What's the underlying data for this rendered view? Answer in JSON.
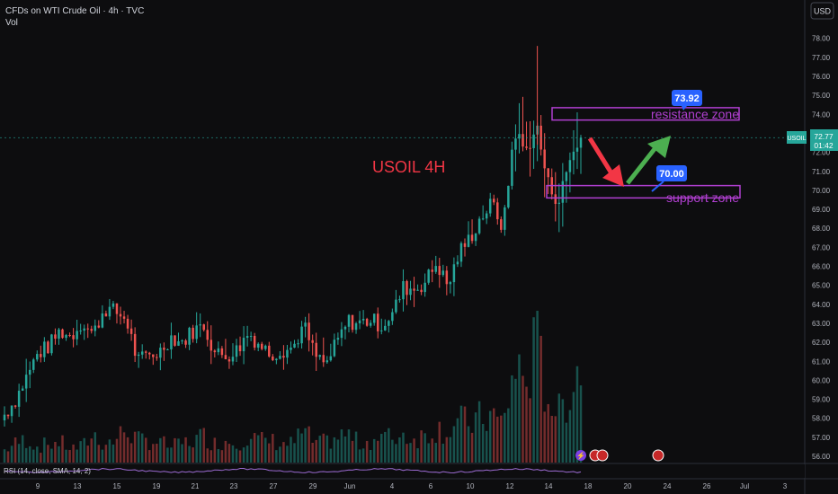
{
  "header": {
    "title": "CFDs on WTI Crude Oil · 4h · TVC",
    "vol_label": "Vol",
    "currency_button": "USD"
  },
  "annotations": {
    "main_text": "USOIL 4H",
    "resistance_label": "resistance zone",
    "support_label": "support zone",
    "target_badge": "73.92",
    "entry_badge": "70.00"
  },
  "price_tag": {
    "symbol": "USOIL",
    "price": "72.77",
    "countdown": "01:42"
  },
  "rsi_label": "RSI (14, close, SMA, 14, 2)",
  "colors": {
    "background": "#0d0d0f",
    "up": "#26a69a",
    "down": "#ef5350",
    "zone": "#b03fd0",
    "badge": "#2962ff",
    "annotation_text": "#f23645",
    "arrow_down": "#f23645",
    "arrow_up": "#4caf50",
    "rsi_line": "#9c6bd3"
  },
  "chart_data": {
    "type": "candlestick",
    "x_tick_labels": [
      "9",
      "13",
      "15",
      "19",
      "21",
      "23",
      "27",
      "29",
      "Jun",
      "4",
      "6",
      "10",
      "12",
      "14",
      "18",
      "20",
      "24",
      "26",
      "Jul",
      "3"
    ],
    "y_tick_labels": [
      "56.00",
      "57.00",
      "58.00",
      "59.00",
      "60.00",
      "61.00",
      "62.00",
      "63.00",
      "64.00",
      "65.00",
      "66.00",
      "67.00",
      "68.00",
      "69.00",
      "70.00",
      "71.00",
      "72.00",
      "73.00",
      "74.00",
      "75.00",
      "76.00",
      "77.00",
      "78.00"
    ],
    "ylim": [
      56,
      78.5
    ],
    "resistance_zone": [
      73.7,
      74.35
    ],
    "support_zone": [
      69.6,
      70.25
    ],
    "current_price": 72.77,
    "close_path": [
      58.2,
      59.0,
      60.2,
      61.4,
      61.8,
      62.6,
      62.3,
      63.1,
      62.4,
      63.8,
      63.6,
      63.2,
      61.0,
      61.3,
      61.5,
      62.3,
      62.0,
      62.6,
      62.9,
      61.4,
      61.3,
      61.6,
      62.5,
      61.9,
      61.4,
      61.6,
      61.7,
      62.9,
      61.3,
      60.8,
      62.0,
      63.1,
      63.0,
      63.2,
      62.9,
      63.5,
      64.9,
      64.8,
      65.2,
      66.2,
      64.9,
      66.7,
      67.5,
      68.6,
      69.3,
      68.0,
      73.2,
      72.0,
      73.4,
      70.4,
      69.4,
      71.6,
      72.9
    ],
    "volume_path": [
      8,
      12,
      15,
      10,
      12,
      13,
      9,
      10,
      18,
      12,
      14,
      22,
      14,
      14,
      13,
      10,
      12,
      14,
      17,
      12,
      14,
      13,
      17,
      14,
      14,
      12,
      12,
      20,
      12,
      13,
      16,
      18,
      12,
      14,
      16,
      16,
      18,
      15,
      18,
      22,
      20,
      26,
      25,
      28,
      30,
      24,
      60,
      52,
      72,
      44,
      30,
      48,
      66
    ]
  }
}
